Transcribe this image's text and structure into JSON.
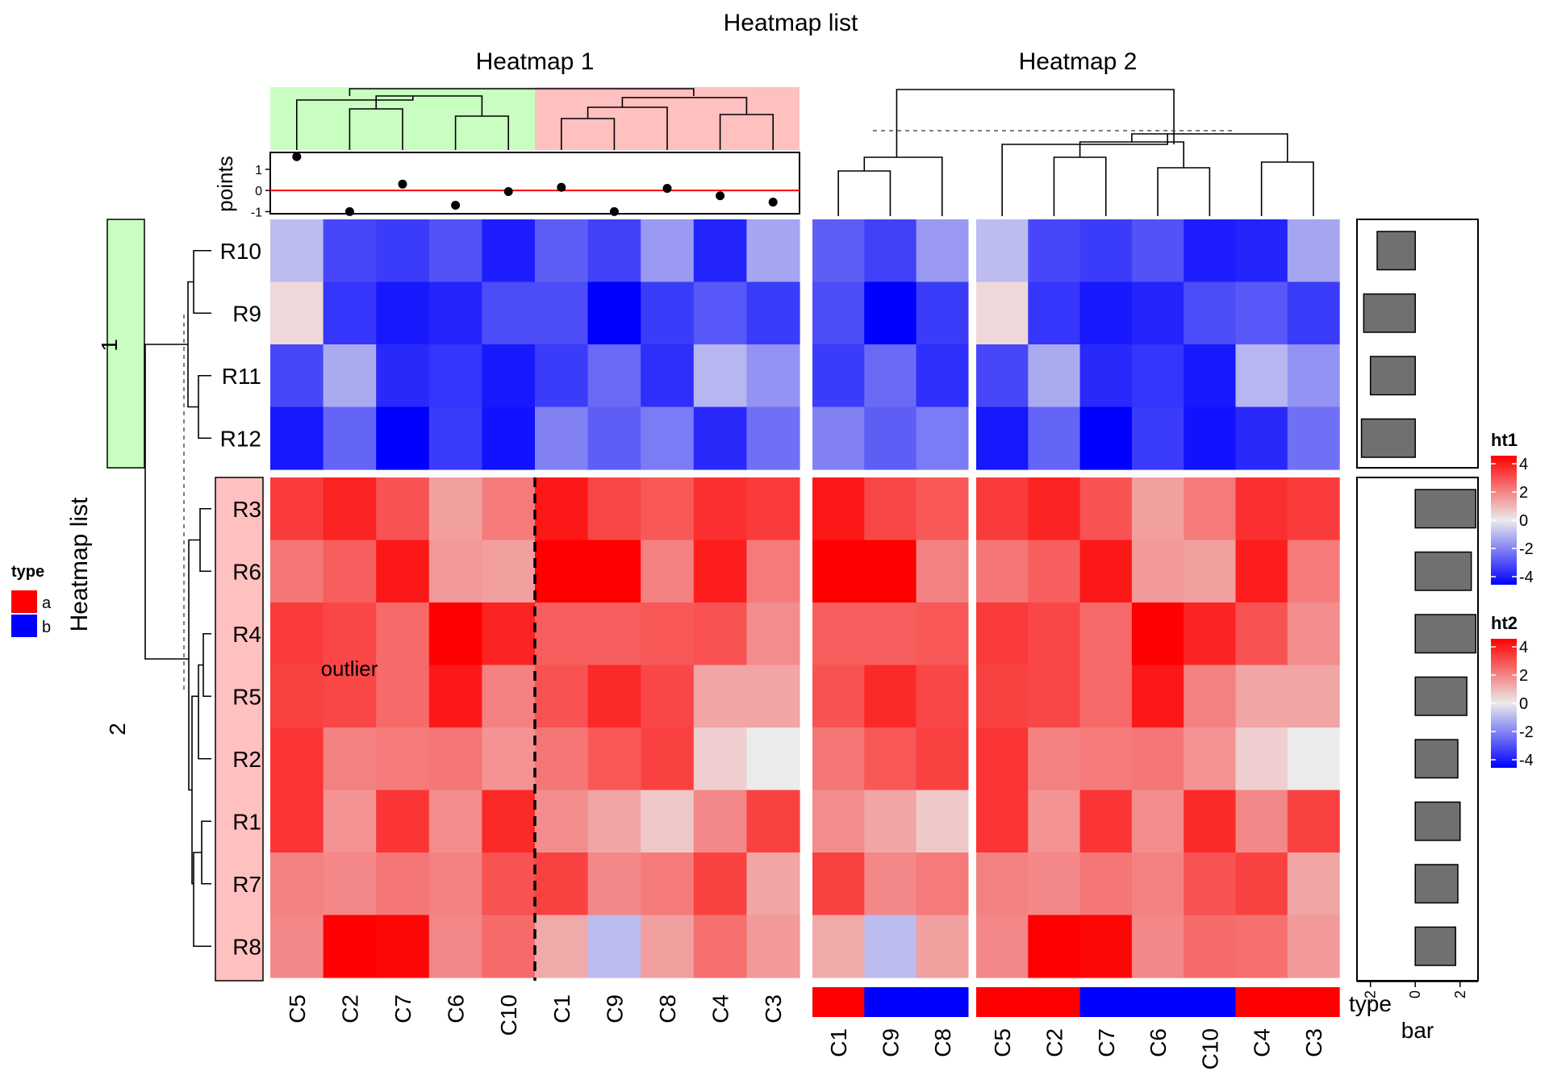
{
  "chart_data": {
    "type": "heatmap",
    "title": "Heatmap list",
    "row_title": "Heatmap list",
    "outlier_label": "outlier",
    "heatmaps": [
      {
        "title": "Heatmap 1",
        "legend_title": "ht1",
        "columns": [
          "C5",
          "C2",
          "C7",
          "C6",
          "C10",
          "C1",
          "C9",
          "C8",
          "C4",
          "C3"
        ],
        "column_split_colors": [
          "#c8ffc0",
          "#ffc0c0"
        ],
        "points_annotation": {
          "label": "points",
          "values": [
            1.6,
            -1.0,
            0.3,
            -0.7,
            -0.05,
            0.15,
            -1.0,
            0.1,
            -0.25,
            -0.55
          ],
          "ticks": [
            "1",
            "0",
            "-1"
          ],
          "ylim": [
            -1.1,
            1.8
          ]
        }
      },
      {
        "title": "Heatmap 2",
        "legend_title": "ht2",
        "columns": [
          "C1",
          "C9",
          "C8",
          "C5",
          "C2",
          "C7",
          "C6",
          "C10",
          "C4",
          "C3"
        ],
        "column_type": [
          "a",
          "b",
          "b",
          "a",
          "a",
          "b",
          "b",
          "b",
          "a",
          "a"
        ],
        "type_label": "type"
      }
    ],
    "row_slices": [
      {
        "label": "1",
        "rows": [
          "R10",
          "R9",
          "R11",
          "R12"
        ],
        "color": "#c8ffc0"
      },
      {
        "label": "2",
        "rows": [
          "R3",
          "R6",
          "R4",
          "R5",
          "R2",
          "R1",
          "R7",
          "R8"
        ],
        "color": "#ffc0c0"
      }
    ],
    "matrix": {
      "R10": {
        "C1": -2.4,
        "C2": -2.8,
        "C3": -1.2,
        "C4": -3.4,
        "C5": -0.8,
        "C6": -2.6,
        "C7": -3.0,
        "C8": -1.4,
        "C9": -2.9,
        "C10": -3.5
      },
      "R9": {
        "C1": -2.7,
        "C2": -3.1,
        "C3": -3.0,
        "C4": -2.5,
        "C5": 0.3,
        "C6": -3.4,
        "C7": -3.6,
        "C8": -3.0,
        "C9": -4.6,
        "C10": -2.7
      },
      "R11": {
        "C1": -3.0,
        "C2": -1.1,
        "C3": -1.5,
        "C4": -0.9,
        "C5": -2.8,
        "C6": -3.1,
        "C7": -3.3,
        "C8": -3.2,
        "C9": -2.2,
        "C10": -3.6
      },
      "R12": {
        "C1": -1.8,
        "C2": -2.3,
        "C3": -2.1,
        "C4": -3.3,
        "C5": -3.6,
        "C6": -3.0,
        "C7": -4.6,
        "C8": -1.9,
        "C9": -2.4,
        "C10": -3.7
      },
      "R3": {
        "C1": 3.6,
        "C2": 3.4,
        "C3": 3.0,
        "C4": 3.2,
        "C5": 3.0,
        "C6": 1.3,
        "C7": 2.6,
        "C8": 2.5,
        "C9": 2.8,
        "C10": 1.9
      },
      "R6": {
        "C1": 4.2,
        "C2": 2.4,
        "C3": 1.9,
        "C4": 3.5,
        "C5": 2.0,
        "C6": 1.4,
        "C7": 3.6,
        "C8": 1.8,
        "C9": 4.6,
        "C10": 1.3
      },
      "R4": {
        "C1": 2.4,
        "C2": 2.8,
        "C3": 1.6,
        "C4": 2.6,
        "C5": 3.0,
        "C6": 4.6,
        "C7": 2.2,
        "C8": 2.5,
        "C9": 2.4,
        "C10": 3.4
      },
      "R5": {
        "C1": 2.6,
        "C2": 2.8,
        "C3": 1.2,
        "C4": 1.2,
        "C5": 2.9,
        "C6": 3.6,
        "C7": 2.2,
        "C8": 2.8,
        "C9": 3.3,
        "C10": 1.8
      },
      "R2": {
        "C1": 2.0,
        "C2": 1.8,
        "C3": 0.0,
        "C4": 0.5,
        "C5": 3.1,
        "C6": 2.0,
        "C7": 1.9,
        "C8": 2.9,
        "C9": 2.5,
        "C10": 1.5
      },
      "R1": {
        "C1": 1.6,
        "C2": 1.5,
        "C3": 2.9,
        "C4": 1.7,
        "C5": 3.1,
        "C6": 1.6,
        "C7": 3.1,
        "C8": 0.6,
        "C9": 1.2,
        "C10": 3.3
      },
      "R7": {
        "C1": 2.9,
        "C2": 1.7,
        "C3": 1.2,
        "C4": 2.9,
        "C5": 1.8,
        "C6": 1.8,
        "C7": 2.0,
        "C8": 1.9,
        "C9": 1.7,
        "C10": 2.6
      },
      "R8": {
        "C1": 1.1,
        "C2": 4.4,
        "C3": 1.4,
        "C4": 2.1,
        "C5": 1.7,
        "C6": 1.7,
        "C7": 3.9,
        "C8": 1.3,
        "C9": -0.8,
        "C10": 2.2
      }
    },
    "bar_annotation": {
      "label": "bar",
      "values": {
        "R10": -1.7,
        "R9": -2.3,
        "R11": -2.0,
        "R12": -2.4,
        "R3": 2.7,
        "R6": 2.5,
        "R4": 2.7,
        "R5": 2.3,
        "R2": 1.9,
        "R1": 2.0,
        "R7": 1.9,
        "R8": 1.8
      },
      "xlim": [
        -2.6,
        2.8
      ],
      "ticks": [
        "-2",
        "0",
        "2"
      ]
    },
    "legends": {
      "type": {
        "title": "type",
        "items": [
          {
            "label": "a",
            "color": "#ff0000"
          },
          {
            "label": "b",
            "color": "#0000ff"
          }
        ]
      },
      "color_scale": {
        "ticks": [
          "4",
          "2",
          "0",
          "-2",
          "-4"
        ],
        "range": [
          -4,
          4
        ],
        "colors": [
          "#0000ff",
          "#ebebeb",
          "#ff0000"
        ]
      }
    }
  }
}
